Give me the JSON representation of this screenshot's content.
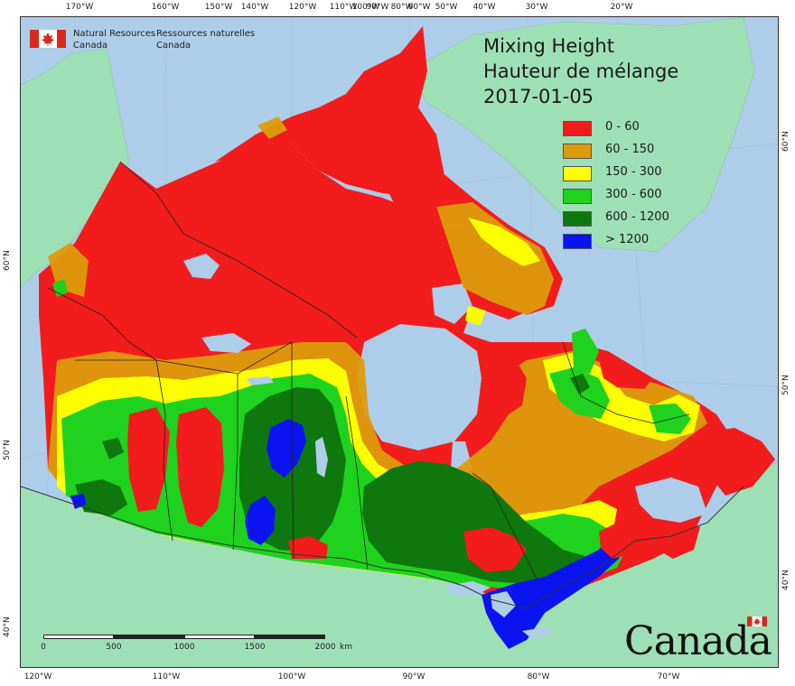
{
  "agency": {
    "name_en_line1": "Natural Resources",
    "name_en_line2": "Canada",
    "name_fr_line1": "Ressources naturelles",
    "name_fr_line2": "Canada"
  },
  "map_title": {
    "line1": "Mixing Height",
    "line2": "Hauteur de mélange",
    "date": "2017-01-05"
  },
  "legend": [
    {
      "label": "0 - 60",
      "color": "#f21c1c"
    },
    {
      "label": "60 - 150",
      "color": "#dc9b0c"
    },
    {
      "label": "150 - 300",
      "color": "#ffff00"
    },
    {
      "label": "300 - 600",
      "color": "#1ed21e"
    },
    {
      "label": "600 - 1200",
      "color": "#0e780e"
    },
    {
      "label": "> 1200",
      "color": "#0a14f0"
    }
  ],
  "graticule": {
    "top_longitudes": [
      "170°W",
      "160°W",
      "150°W",
      "140°W",
      "120°W",
      "110°W",
      "100°W",
      "90°W",
      "80°W",
      "60°W",
      "50°W",
      "40°W",
      "30°W",
      "20°W"
    ],
    "bottom_longitudes": [
      "120°W",
      "110°W",
      "100°W",
      "90°W",
      "80°W",
      "70°W"
    ],
    "left_latitudes": [
      "60°N",
      "50°N",
      "40°N"
    ],
    "right_latitudes": [
      "60°N",
      "50°N",
      "40°N"
    ]
  },
  "scale_bar": {
    "labels": [
      "0",
      "500",
      "1000",
      "1500",
      "2000"
    ],
    "unit": "km"
  },
  "wordmark": "Canada",
  "colors": {
    "water": "#aecde9",
    "foreign_land": "#9ee0b6",
    "border": "#333333"
  }
}
